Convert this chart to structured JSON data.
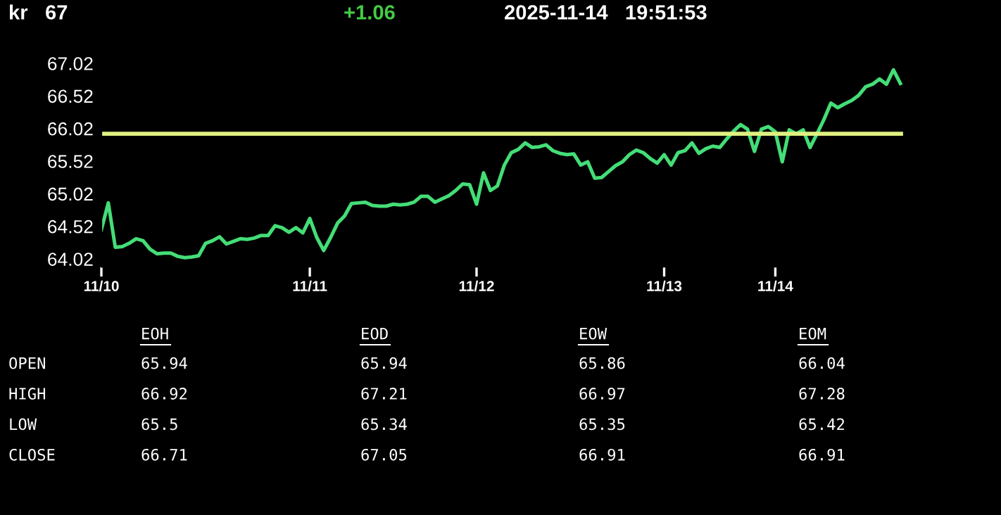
{
  "chart_data": {
    "type": "line",
    "categories": [
      "11/10",
      null,
      null,
      null,
      null,
      null,
      null,
      null,
      null,
      null,
      null,
      null,
      null,
      null,
      null,
      null,
      null,
      null,
      null,
      null,
      null,
      null,
      null,
      null,
      null,
      null,
      null,
      null,
      null,
      null,
      "11/11",
      null,
      null,
      null,
      null,
      null,
      null,
      null,
      null,
      null,
      null,
      null,
      null,
      null,
      null,
      null,
      null,
      null,
      null,
      null,
      null,
      null,
      null,
      null,
      "11/12",
      null,
      null,
      null,
      null,
      null,
      null,
      null,
      null,
      null,
      null,
      null,
      null,
      null,
      null,
      null,
      null,
      null,
      null,
      null,
      null,
      null,
      null,
      null,
      null,
      null,
      null,
      "11/13",
      null,
      null,
      null,
      null,
      null,
      null,
      null,
      null,
      null,
      null,
      null,
      null,
      null,
      null,
      null,
      "11/14",
      null,
      null,
      null,
      null,
      null,
      null,
      null,
      null,
      null,
      null,
      null,
      null,
      null,
      null,
      null,
      null,
      null,
      null
    ],
    "series": [
      {
        "color": "#44dd77",
        "values": [
          64.47,
          64.88,
          64.2,
          64.21,
          64.26,
          64.33,
          64.3,
          64.17,
          64.1,
          64.11,
          64.11,
          64.06,
          64.04,
          64.05,
          64.07,
          64.26,
          64.3,
          64.36,
          64.25,
          64.29,
          64.33,
          64.32,
          64.34,
          64.38,
          64.38,
          64.53,
          64.5,
          64.43,
          64.5,
          64.42,
          64.64,
          64.35,
          64.15,
          64.35,
          64.57,
          64.68,
          64.87,
          64.88,
          64.89,
          64.84,
          64.83,
          64.83,
          64.86,
          64.85,
          64.86,
          64.89,
          64.98,
          64.98,
          64.89,
          64.94,
          64.99,
          65.07,
          65.17,
          65.16,
          64.86,
          65.34,
          65.07,
          65.14,
          65.46,
          65.65,
          65.7,
          65.8,
          65.73,
          65.74,
          65.77,
          65.68,
          65.64,
          65.62,
          65.63,
          65.46,
          65.51,
          65.26,
          65.27,
          65.36,
          65.45,
          65.51,
          65.62,
          65.69,
          65.65,
          65.56,
          65.49,
          65.62,
          65.46,
          65.65,
          65.68,
          65.8,
          65.64,
          65.71,
          65.75,
          65.73,
          65.86,
          65.98,
          66.08,
          66.01,
          65.67,
          66.01,
          66.05,
          65.97,
          65.51,
          66.0,
          65.94,
          66.0,
          65.73,
          65.94,
          66.16,
          66.41,
          66.34,
          66.4,
          66.45,
          66.53,
          66.66,
          66.7,
          66.78,
          66.7,
          66.92,
          66.71
        ]
      }
    ],
    "ylim": [
      63.9,
      67.1
    ],
    "yticks": [
      64.02,
      64.52,
      65.02,
      65.52,
      66.02,
      66.52,
      67.02
    ],
    "ref_lines": [
      {
        "axis": "y",
        "value": 65.94,
        "color": "#e0f080"
      }
    ],
    "grid": false,
    "legend": false,
    "marker": "none",
    "line_style": "solid",
    "annotations": [
      "kr",
      "67",
      "+1.06",
      "2025-11-14   19:51:53",
      "EOH",
      "EOD",
      "EOW",
      "EOM",
      "OPEN",
      "65.94",
      "65.94",
      "65.86",
      "66.04",
      "HIGH",
      "66.92",
      "67.21",
      "66.97",
      "67.28",
      "LOW",
      "65.5",
      "65.34",
      "65.35",
      "65.42",
      "CLOSE",
      "66.71",
      "67.05",
      "66.91",
      "66.91"
    ]
  }
}
